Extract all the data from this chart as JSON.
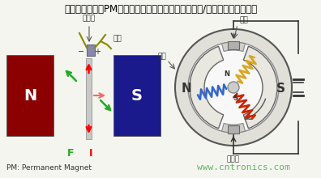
{
  "title": "利用永久磁铁（PM）和电磁铁（线圈）之间的吸引力/排斥力来工作的电机",
  "title_color": "#000000",
  "title_fontsize": 8.5,
  "bg_color": "#f5f5f0",
  "N_box_color": "#8B0000",
  "S_box_color": "#1a1a8c",
  "zhengliuqi_left": "整流器",
  "dianshua_left": "电刷",
  "F_label": "F",
  "I_label": "I",
  "pm_text": "PM: Permanent Magnet",
  "dianshua_right": "电刷",
  "citie_right": "磁铁",
  "zhengliuqi_right": "整流器",
  "N_stator": "N",
  "S_stator": "S",
  "N_rotor": "N",
  "S_rotor": "S",
  "website": "www.cntronics.com",
  "website_color": "#5cb85c",
  "figsize": [
    3.96,
    2.2
  ],
  "dpi": 100
}
